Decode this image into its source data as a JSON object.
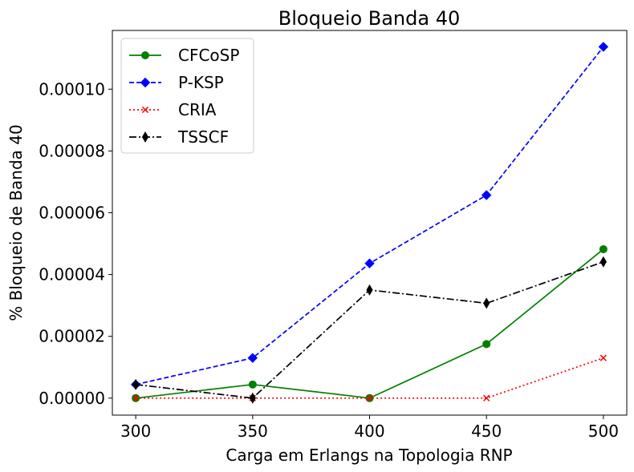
{
  "chart_data": {
    "type": "line",
    "title": "Bloqueio Banda 40",
    "xlabel": "Carga em Erlangs na Topologia RNP",
    "ylabel": "% Bloqueio de Banda 40",
    "x": [
      300,
      350,
      400,
      450,
      500
    ],
    "xlim": [
      290,
      510
    ],
    "ylim": [
      -5.5e-06,
      0.000119
    ],
    "xticks": [
      300,
      350,
      400,
      450,
      500
    ],
    "xtick_labels": [
      "300",
      "350",
      "400",
      "450",
      "500"
    ],
    "yticks": [
      0,
      2e-05,
      4e-05,
      6e-05,
      8e-05,
      0.0001
    ],
    "ytick_labels": [
      "0.00000",
      "0.00002",
      "0.00004",
      "0.00006",
      "0.00008",
      "0.00010"
    ],
    "grid": false,
    "legend_position": "upper-left",
    "series": [
      {
        "name": "CFCoSP",
        "color": "#008000",
        "linestyle": "solid",
        "marker": "circle",
        "values": [
          0.0,
          4.4e-06,
          0.0,
          1.75e-05,
          4.82e-05
        ]
      },
      {
        "name": "P-KSP",
        "color": "#0000ff",
        "linestyle": "dashed",
        "marker": "diamond",
        "values": [
          4.4e-06,
          1.3e-05,
          4.36e-05,
          6.57e-05,
          0.0001137
        ]
      },
      {
        "name": "CRIA",
        "color": "#ff0000",
        "linestyle": "dotted",
        "marker": "x",
        "values": [
          0.0,
          0.0,
          0.0,
          0.0,
          1.3e-05
        ]
      },
      {
        "name": "TSSCF",
        "color": "#000000",
        "linestyle": "dashdot",
        "marker": "thin-diamond",
        "values": [
          4.4e-06,
          0.0,
          3.5e-05,
          3.07e-05,
          4.41e-05
        ]
      }
    ]
  }
}
